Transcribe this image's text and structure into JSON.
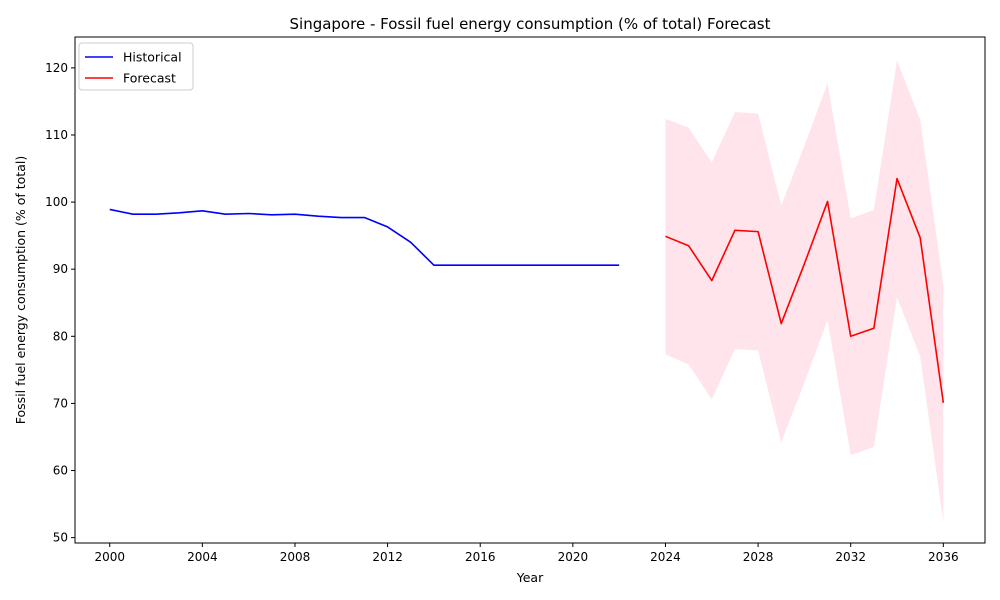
{
  "chart_data": {
    "type": "line",
    "title": "Singapore - Fossil fuel energy consumption (% of total) Forecast",
    "xlabel": "Year",
    "ylabel": "Fossil fuel energy consumption (% of total)",
    "xlim": [
      1998.5,
      2037.8
    ],
    "ylim": [
      49.2,
      124.6
    ],
    "x_ticks": [
      2000,
      2004,
      2008,
      2012,
      2016,
      2020,
      2024,
      2028,
      2032,
      2036
    ],
    "y_ticks": [
      50,
      60,
      70,
      80,
      90,
      100,
      110,
      120
    ],
    "grid": false,
    "legend_position": "top-left",
    "series": [
      {
        "name": "Historical",
        "color": "#0000ff",
        "x": [
          2000,
          2001,
          2002,
          2003,
          2004,
          2005,
          2006,
          2007,
          2008,
          2009,
          2010,
          2011,
          2012,
          2013,
          2014,
          2015,
          2016,
          2017,
          2018,
          2019,
          2020,
          2021,
          2022
        ],
        "y": [
          98.9,
          98.2,
          98.2,
          98.4,
          98.7,
          98.2,
          98.3,
          98.1,
          98.2,
          97.9,
          97.7,
          97.7,
          96.3,
          94.0,
          90.6,
          90.6,
          90.6,
          90.6,
          90.6,
          90.6,
          90.6,
          90.6,
          90.6
        ]
      },
      {
        "name": "Forecast",
        "color": "#ff0000",
        "x": [
          2024,
          2025,
          2026,
          2027,
          2028,
          2029,
          2030,
          2031,
          2032,
          2033,
          2034,
          2035,
          2036
        ],
        "y": [
          94.9,
          93.5,
          88.3,
          95.8,
          95.6,
          81.9,
          90.8,
          100.1,
          80.0,
          81.2,
          103.5,
          94.7,
          70.1
        ]
      }
    ],
    "forecast_interval": {
      "color": "#ffe4ec",
      "x": [
        2024,
        2025,
        2026,
        2027,
        2028,
        2029,
        2030,
        2031,
        2032,
        2033,
        2034,
        2035,
        2036
      ],
      "lower": [
        77.3,
        75.8,
        70.6,
        78.1,
        77.9,
        64.2,
        73.1,
        82.4,
        62.3,
        63.5,
        85.8,
        77.0,
        52.4
      ],
      "upper": [
        112.4,
        111.1,
        105.9,
        113.4,
        113.2,
        99.5,
        108.4,
        117.7,
        97.6,
        98.8,
        121.1,
        112.3,
        87.7
      ]
    }
  }
}
